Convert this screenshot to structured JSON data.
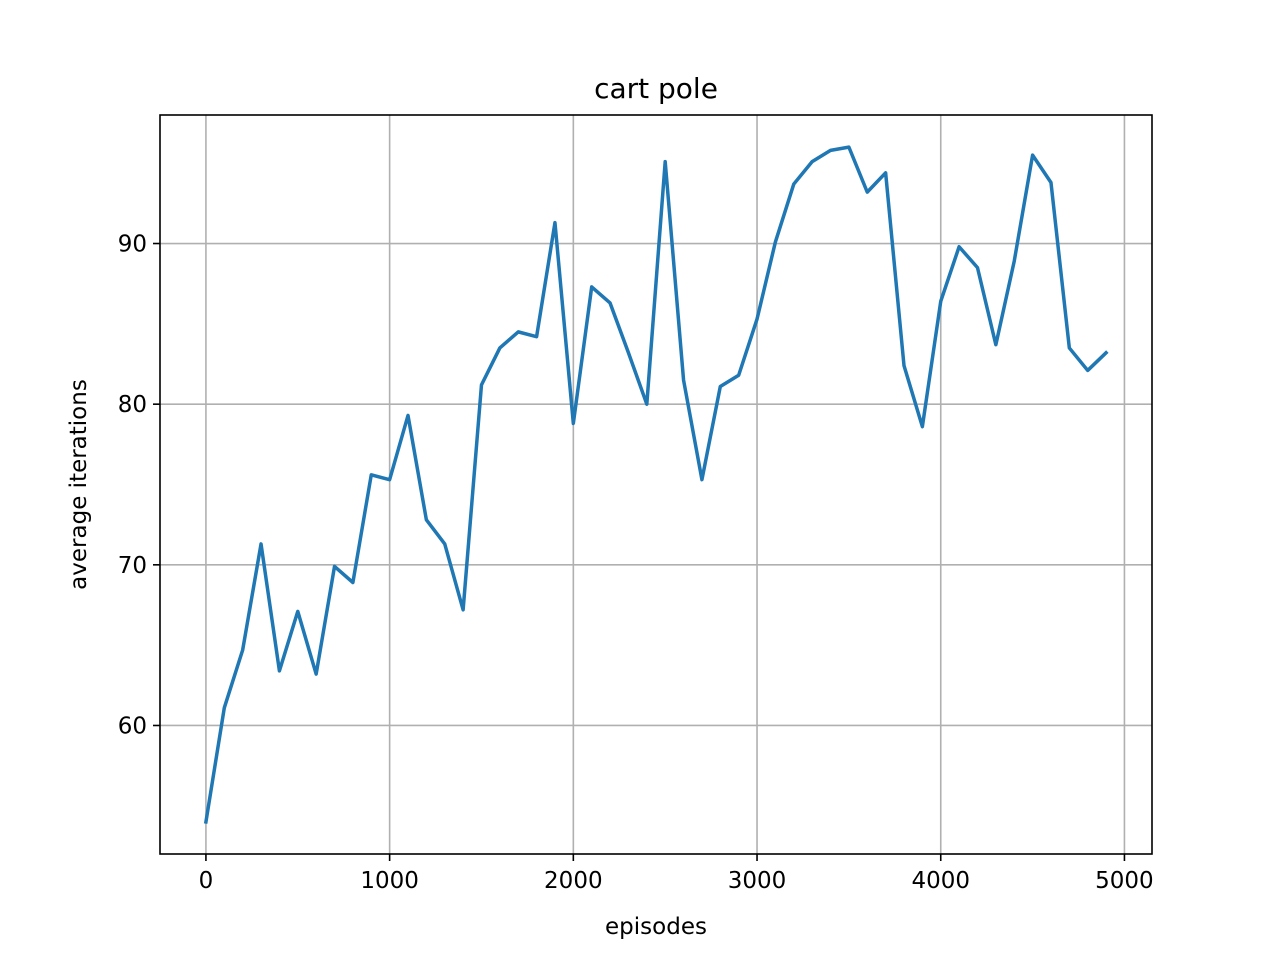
{
  "chart_data": {
    "type": "line",
    "title": "cart pole",
    "xlabel": "episodes",
    "ylabel": "average iterations",
    "xlim": [
      -250,
      5150
    ],
    "ylim": [
      52.0,
      98.0
    ],
    "xticks": [
      0,
      1000,
      2000,
      3000,
      4000,
      5000
    ],
    "yticks": [
      60,
      70,
      80,
      90
    ],
    "grid": true,
    "legend": "none",
    "series": [
      {
        "color": "#1f77b4",
        "x": [
          0,
          100,
          200,
          300,
          400,
          500,
          600,
          700,
          800,
          900,
          1000,
          1100,
          1200,
          1300,
          1400,
          1500,
          1600,
          1700,
          1800,
          1900,
          2000,
          2100,
          2200,
          2300,
          2400,
          2500,
          2600,
          2700,
          2800,
          2900,
          3000,
          3100,
          3200,
          3300,
          3400,
          3500,
          3600,
          3700,
          3800,
          3900,
          4000,
          4100,
          4200,
          4300,
          4400,
          4500,
          4600,
          4700,
          4800,
          4900
        ],
        "y": [
          54.0,
          61.1,
          64.7,
          71.3,
          63.4,
          67.1,
          63.2,
          69.9,
          68.9,
          75.6,
          75.3,
          79.3,
          72.8,
          71.3,
          67.2,
          81.2,
          83.5,
          84.5,
          84.2,
          91.3,
          78.8,
          87.3,
          86.3,
          83.2,
          80.0,
          95.1,
          81.5,
          75.3,
          81.1,
          81.8,
          85.3,
          90.1,
          93.7,
          95.1,
          95.8,
          96.0,
          93.2,
          94.4,
          82.4,
          78.6,
          86.4,
          89.8,
          88.5,
          83.7,
          88.9,
          95.5,
          93.8,
          83.5,
          82.1,
          83.2
        ]
      }
    ]
  }
}
